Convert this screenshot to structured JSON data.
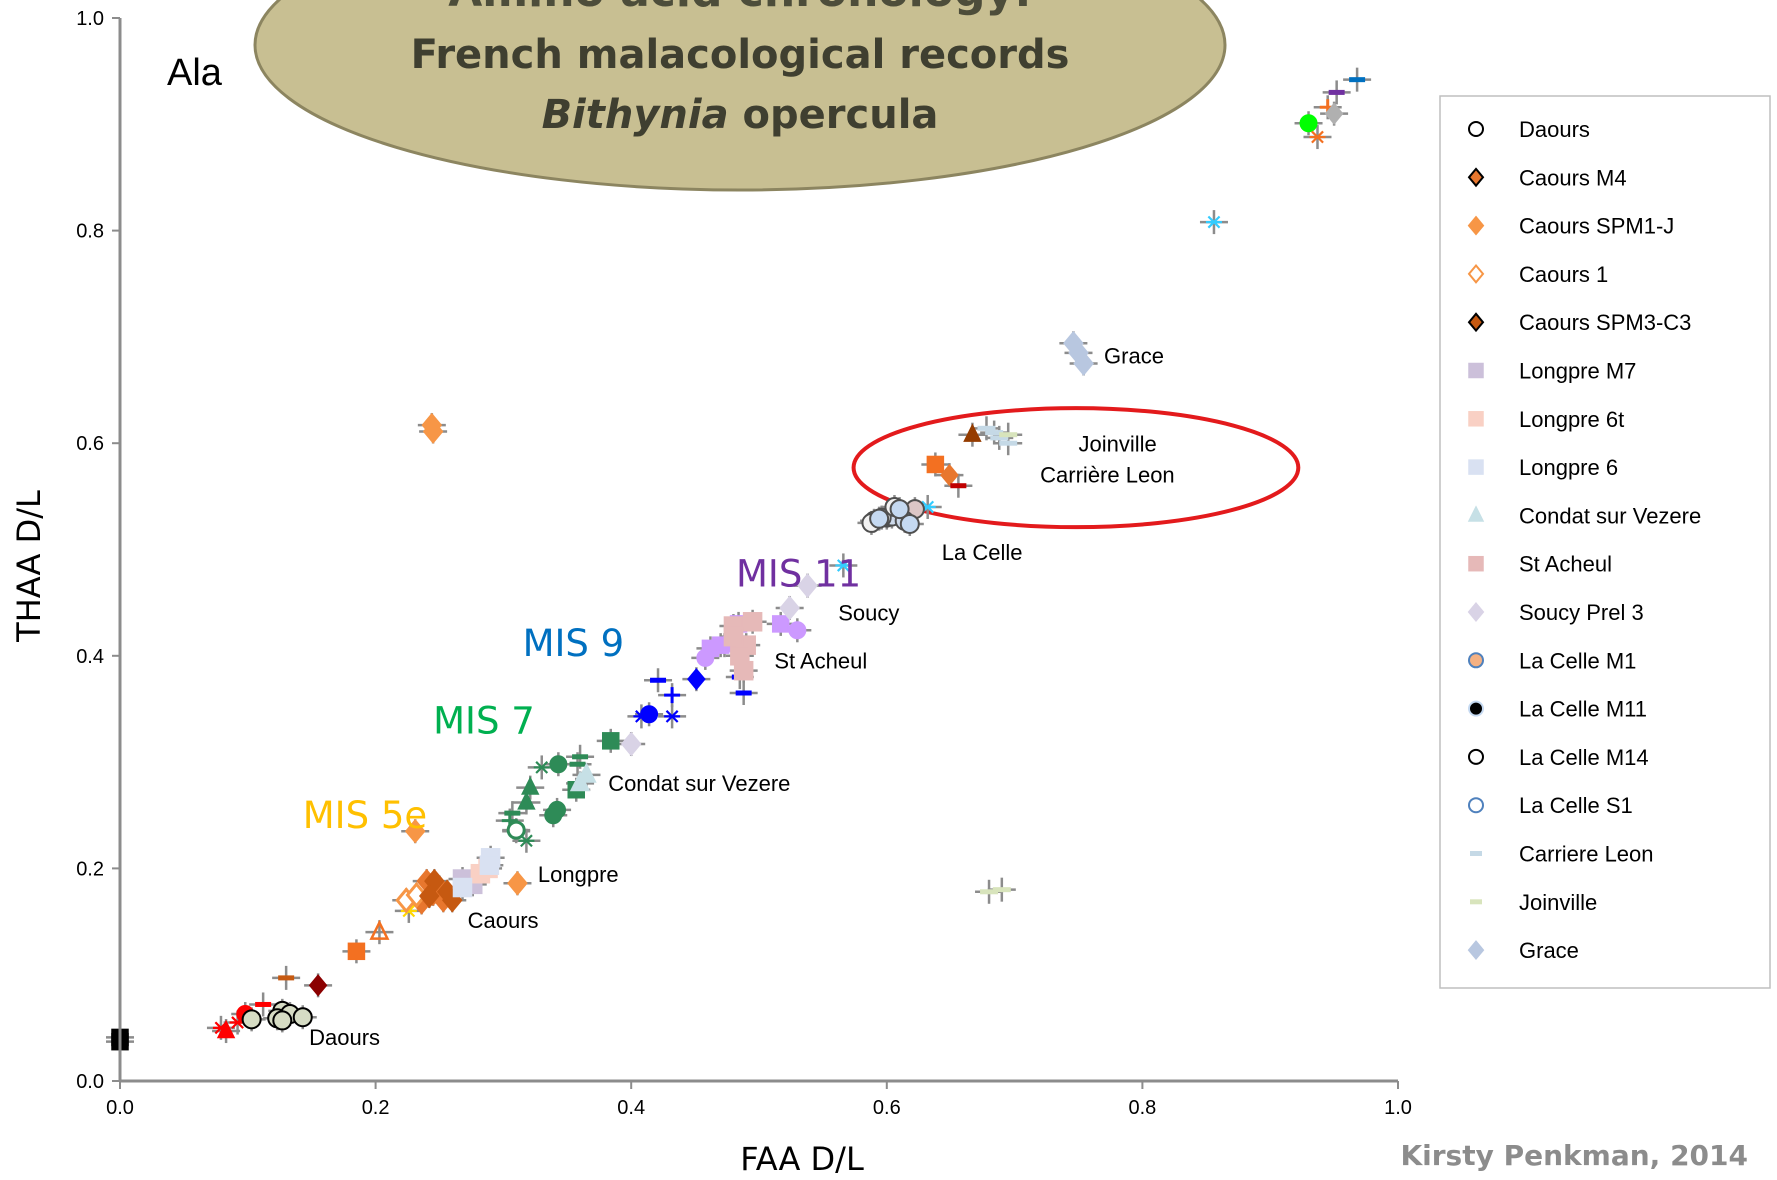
{
  "chart_data": {
    "type": "scatter",
    "title": "Amino acid chronology:",
    "subtitle_line1": "French malacological records",
    "subtitle_italic": "Bithynia",
    "subtitle_rest": " opercula",
    "corner_label": "Ala",
    "xlabel": "FAA D/L",
    "ylabel": "THAA D/L",
    "xlim": [
      0.0,
      1.0
    ],
    "ylim": [
      0.0,
      1.0
    ],
    "x_ticks": [
      "0.0",
      "0.2",
      "0.4",
      "0.6",
      "0.8",
      "1.0"
    ],
    "y_ticks": [
      "0.0",
      "0.2",
      "0.4",
      "0.6",
      "0.8",
      "1.0"
    ],
    "grid": false,
    "legend_position": "right",
    "credit": "Kirsty Penkman, 2014",
    "annotations": [
      {
        "text": "Grace",
        "x": 0.77,
        "y": 0.675
      },
      {
        "text": "Joinville",
        "x": 0.75,
        "y": 0.592
      },
      {
        "text": "Carrière Leon",
        "x": 0.72,
        "y": 0.563
      },
      {
        "text": "La Celle",
        "x": 0.643,
        "y": 0.49
      },
      {
        "text": "Soucy",
        "x": 0.562,
        "y": 0.433
      },
      {
        "text": "St Acheul",
        "x": 0.512,
        "y": 0.388
      },
      {
        "text": "Condat sur Vezere",
        "x": 0.382,
        "y": 0.273
      },
      {
        "text": "Longpre",
        "x": 0.327,
        "y": 0.187
      },
      {
        "text": "Caours",
        "x": 0.272,
        "y": 0.144
      },
      {
        "text": "Daours",
        "x": 0.148,
        "y": 0.034
      }
    ],
    "mis_labels": [
      {
        "text": "MIS 11",
        "x": 0.482,
        "y": 0.465,
        "color": "#7030a0"
      },
      {
        "text": "MIS 9",
        "x": 0.315,
        "y": 0.4,
        "color": "#0070c0"
      },
      {
        "text": "MIS 7",
        "x": 0.245,
        "y": 0.327,
        "color": "#00b050"
      },
      {
        "text": "MIS 5e",
        "x": 0.143,
        "y": 0.238,
        "color": "#ffc000"
      }
    ],
    "highlight_ellipse": {
      "cx": 0.748,
      "cy": 0.577,
      "rx": 0.174,
      "ry": 0.056,
      "color": "#e31a1c"
    },
    "series": [
      {
        "name": "Daours",
        "marker": "circle-open",
        "color": "#000000",
        "points": [
          [
            0.127,
            0.066
          ],
          [
            0.133,
            0.063
          ],
          [
            0.123,
            0.059
          ],
          [
            0.103,
            0.058
          ],
          [
            0.143,
            0.06
          ],
          [
            0.127,
            0.057
          ]
        ]
      },
      {
        "name": "Caours M4",
        "marker": "diamond",
        "color": "#e8772e",
        "points": [
          [
            0.24,
            0.188
          ],
          [
            0.25,
            0.182
          ],
          [
            0.245,
            0.176
          ],
          [
            0.253,
            0.17
          ],
          [
            0.236,
            0.168
          ]
        ]
      },
      {
        "name": "Caours SPM1-J",
        "marker": "diamond",
        "color": "#f79646",
        "points": [
          [
            0.244,
            0.617
          ],
          [
            0.245,
            0.611
          ],
          [
            0.311,
            0.186
          ],
          [
            0.231,
            0.235
          ]
        ]
      },
      {
        "name": "Caours 1",
        "marker": "diamond-open",
        "color": "#f79646",
        "points": [
          [
            0.224,
            0.17
          ],
          [
            0.232,
            0.175
          ]
        ]
      },
      {
        "name": "Caours SPM3-C3",
        "marker": "diamond",
        "color": "#c65911",
        "points": [
          [
            0.246,
            0.188
          ],
          [
            0.256,
            0.178
          ],
          [
            0.26,
            0.17
          ],
          [
            0.242,
            0.174
          ]
        ]
      },
      {
        "name": "Longpre M7",
        "marker": "square",
        "color": "#ccc0da",
        "points": [
          [
            0.268,
            0.19
          ],
          [
            0.276,
            0.185
          ]
        ]
      },
      {
        "name": "Longpre 6t",
        "marker": "square",
        "color": "#f9d0c4",
        "points": [
          [
            0.282,
            0.195
          ],
          [
            0.288,
            0.2
          ]
        ]
      },
      {
        "name": "Longpre 6",
        "marker": "square",
        "color": "#d9e1f2",
        "points": [
          [
            0.29,
            0.21
          ],
          [
            0.268,
            0.182
          ],
          [
            0.289,
            0.203
          ]
        ]
      },
      {
        "name": "Condat sur Vezere",
        "marker": "triangle",
        "color": "#c6e0e6",
        "points": [
          [
            0.365,
            0.288
          ],
          [
            0.36,
            0.28
          ]
        ]
      },
      {
        "name": "St Acheul",
        "marker": "square",
        "color": "#e6b9b8",
        "points": [
          [
            0.48,
            0.428
          ],
          [
            0.49,
            0.41
          ],
          [
            0.485,
            0.4
          ],
          [
            0.488,
            0.386
          ],
          [
            0.495,
            0.432
          ],
          [
            0.48,
            0.418
          ]
        ]
      },
      {
        "name": "Soucy Prel 3",
        "marker": "diamond",
        "color": "#d9d3e6",
        "points": [
          [
            0.538,
            0.466
          ],
          [
            0.524,
            0.445
          ],
          [
            0.4,
            0.317
          ]
        ]
      },
      {
        "name": "La Celle M1",
        "marker": "circle",
        "color": "#dcc6c6",
        "points": [
          [
            0.6,
            0.53
          ],
          [
            0.612,
            0.534
          ],
          [
            0.622,
            0.538
          ]
        ]
      },
      {
        "name": "La Celle M11",
        "marker": "circle",
        "color": "#cdd9ea",
        "points": [
          [
            0.59,
            0.527
          ],
          [
            0.604,
            0.531
          ],
          [
            0.614,
            0.527
          ]
        ]
      },
      {
        "name": "La Celle M14",
        "marker": "circle",
        "color": "#f2f2f2",
        "points": [
          [
            0.588,
            0.525
          ],
          [
            0.596,
            0.53
          ],
          [
            0.606,
            0.54
          ]
        ]
      },
      {
        "name": "La Celle S1",
        "marker": "circle",
        "color": "#c5d9f1",
        "points": [
          [
            0.594,
            0.529
          ],
          [
            0.61,
            0.538
          ],
          [
            0.618,
            0.524
          ]
        ]
      },
      {
        "name": "Carriere Leon",
        "marker": "dash",
        "color": "#c5d9e6",
        "points": [
          [
            0.678,
            0.614
          ],
          [
            0.688,
            0.605
          ],
          [
            0.695,
            0.6
          ],
          [
            0.684,
            0.61
          ]
        ]
      },
      {
        "name": "Joinville",
        "marker": "dash",
        "color": "#d8e4bc",
        "points": [
          [
            0.695,
            0.608
          ],
          [
            0.68,
            0.178
          ],
          [
            0.69,
            0.18
          ]
        ]
      },
      {
        "name": "Grace",
        "marker": "diamond",
        "color": "#b8c7e0",
        "points": [
          [
            0.746,
            0.694
          ],
          [
            0.75,
            0.685
          ],
          [
            0.754,
            0.675
          ]
        ]
      }
    ],
    "legend": [
      {
        "label": "Daours",
        "marker": "circle-open",
        "fill": "#ffffff",
        "stroke": "#000000"
      },
      {
        "label": "Caours M4",
        "marker": "diamond",
        "fill": "#e8772e",
        "stroke": "#000000"
      },
      {
        "label": "Caours SPM1-J",
        "marker": "diamond",
        "fill": "#f79646",
        "stroke": "#f79646"
      },
      {
        "label": "Caours 1",
        "marker": "diamond",
        "fill": "#ffffff",
        "stroke": "#f79646"
      },
      {
        "label": "Caours SPM3-C3",
        "marker": "diamond",
        "fill": "#c65911",
        "stroke": "#000000"
      },
      {
        "label": "Longpre M7",
        "marker": "square",
        "fill": "#ccc0da",
        "stroke": "#ccc0da"
      },
      {
        "label": "Longpre 6t",
        "marker": "square",
        "fill": "#f9d0c4",
        "stroke": "#f9d0c4"
      },
      {
        "label": "Longpre 6",
        "marker": "square",
        "fill": "#d9e1f2",
        "stroke": "#d9e1f2"
      },
      {
        "label": "Condat sur Vezere",
        "marker": "triangle",
        "fill": "#c6e0e6",
        "stroke": "#c6e0e6"
      },
      {
        "label": "St Acheul",
        "marker": "square",
        "fill": "#e6b9b8",
        "stroke": "#e6b9b8"
      },
      {
        "label": "Soucy Prel 3",
        "marker": "diamond",
        "fill": "#d9d3e6",
        "stroke": "#d9d3e6"
      },
      {
        "label": "La Celle M1",
        "marker": "circle",
        "fill": "#f4b183",
        "stroke": "#4f81bd"
      },
      {
        "label": "La Celle M11",
        "marker": "circle",
        "fill": "#000000",
        "stroke": "#c5d9f1"
      },
      {
        "label": "La Celle M14",
        "marker": "circle",
        "fill": "#ffffff",
        "stroke": "#000000"
      },
      {
        "label": "La Celle S1",
        "marker": "circle",
        "fill": "#ffffff",
        "stroke": "#4f81bd"
      },
      {
        "label": "Carriere Leon",
        "marker": "dash",
        "fill": "#c5d9e6",
        "stroke": "#c5d9e6"
      },
      {
        "label": "Joinville",
        "marker": "dash",
        "fill": "#d8e4bc",
        "stroke": "#d8e4bc"
      },
      {
        "label": "Grace",
        "marker": "diamond",
        "fill": "#b8c7e0",
        "stroke": "#b8c7e0"
      }
    ],
    "other_points": [
      {
        "marker": "circle",
        "color": "#00ff00",
        "x": 0.93,
        "y": 0.901
      },
      {
        "marker": "star",
        "color": "#f37021",
        "x": 0.937,
        "y": 0.888
      },
      {
        "marker": "plus",
        "color": "#f37021",
        "x": 0.945,
        "y": 0.916
      },
      {
        "marker": "diamond",
        "color": "#b0b0b0",
        "x": 0.95,
        "y": 0.91
      },
      {
        "marker": "dash",
        "color": "#7030a0",
        "x": 0.952,
        "y": 0.93
      },
      {
        "marker": "dash",
        "color": "#0070c0",
        "x": 0.968,
        "y": 0.942
      },
      {
        "marker": "star",
        "color": "#33ccff",
        "x": 0.856,
        "y": 0.808
      },
      {
        "marker": "star",
        "color": "#33ccff",
        "x": 0.566,
        "y": 0.485
      },
      {
        "marker": "star",
        "color": "#33ccff",
        "x": 0.632,
        "y": 0.54
      },
      {
        "marker": "triangle",
        "color": "#953c00",
        "x": 0.667,
        "y": 0.608
      },
      {
        "marker": "square",
        "color": "#f37021",
        "x": 0.638,
        "y": 0.58
      },
      {
        "marker": "diamond",
        "color": "#e8772e",
        "x": 0.649,
        "y": 0.57
      },
      {
        "marker": "dash",
        "color": "#c00000",
        "x": 0.656,
        "y": 0.56
      },
      {
        "marker": "square",
        "color": "#cc99ff",
        "x": 0.47,
        "y": 0.41
      },
      {
        "marker": "square",
        "color": "#cc99ff",
        "x": 0.462,
        "y": 0.407
      },
      {
        "marker": "square",
        "color": "#cc99ff",
        "x": 0.517,
        "y": 0.43
      },
      {
        "marker": "circle",
        "color": "#cc99ff",
        "x": 0.53,
        "y": 0.424
      },
      {
        "marker": "circle",
        "color": "#cc99ff",
        "x": 0.458,
        "y": 0.398
      },
      {
        "marker": "triangle",
        "color": "#cc99ff",
        "x": 0.473,
        "y": 0.41
      },
      {
        "marker": "square",
        "color": "#cc99ff",
        "x": 0.484,
        "y": 0.43
      },
      {
        "marker": "circle",
        "color": "#0000ff",
        "x": 0.414,
        "y": 0.345
      },
      {
        "marker": "star",
        "color": "#0000ff",
        "x": 0.408,
        "y": 0.343
      },
      {
        "marker": "star",
        "color": "#0000ff",
        "x": 0.432,
        "y": 0.343
      },
      {
        "marker": "diamond",
        "color": "#0000ff",
        "x": 0.451,
        "y": 0.378
      },
      {
        "marker": "plus",
        "color": "#0000ff",
        "x": 0.432,
        "y": 0.363
      },
      {
        "marker": "dash",
        "color": "#0000ff",
        "x": 0.421,
        "y": 0.377
      },
      {
        "marker": "dash",
        "color": "#0000ff",
        "x": 0.485,
        "y": 0.38
      },
      {
        "marker": "dash",
        "color": "#0000ff",
        "x": 0.488,
        "y": 0.365
      },
      {
        "marker": "square",
        "color": "#2e8b57",
        "x": 0.384,
        "y": 0.32
      },
      {
        "marker": "square",
        "color": "#2e8b57",
        "x": 0.357,
        "y": 0.274
      },
      {
        "marker": "circle",
        "color": "#2e8b57",
        "x": 0.343,
        "y": 0.298
      },
      {
        "marker": "circle",
        "color": "#2e8b57",
        "x": 0.342,
        "y": 0.255
      },
      {
        "marker": "circle",
        "color": "#2e8b57",
        "x": 0.339,
        "y": 0.25
      },
      {
        "marker": "triangle",
        "color": "#2e8b57",
        "x": 0.321,
        "y": 0.276
      },
      {
        "marker": "triangle",
        "color": "#2e8b57",
        "x": 0.318,
        "y": 0.262
      },
      {
        "marker": "star",
        "color": "#2e8b57",
        "x": 0.33,
        "y": 0.295
      },
      {
        "marker": "star",
        "color": "#2e8b57",
        "x": 0.31,
        "y": 0.235
      },
      {
        "marker": "star",
        "color": "#2e8b57",
        "x": 0.318,
        "y": 0.226
      },
      {
        "marker": "dash",
        "color": "#2e8b57",
        "x": 0.36,
        "y": 0.305
      },
      {
        "marker": "dash",
        "color": "#2e8b57",
        "x": 0.358,
        "y": 0.298
      },
      {
        "marker": "dash",
        "color": "#2e8b57",
        "x": 0.307,
        "y": 0.252
      },
      {
        "marker": "plus",
        "color": "#2e8b57",
        "x": 0.305,
        "y": 0.245
      },
      {
        "marker": "circle-open",
        "color": "#2e8b57",
        "x": 0.31,
        "y": 0.236
      },
      {
        "marker": "star",
        "color": "#ffd700",
        "x": 0.226,
        "y": 0.16
      },
      {
        "marker": "triangle-open",
        "color": "#f37021",
        "x": 0.203,
        "y": 0.14
      },
      {
        "marker": "square",
        "color": "#f37021",
        "x": 0.185,
        "y": 0.122
      },
      {
        "marker": "dash",
        "color": "#c65911",
        "x": 0.13,
        "y": 0.097
      },
      {
        "marker": "diamond",
        "color": "#8b0000",
        "x": 0.155,
        "y": 0.09
      },
      {
        "marker": "circle",
        "color": "#ff0000",
        "x": 0.098,
        "y": 0.063
      },
      {
        "marker": "triangle",
        "color": "#ff0000",
        "x": 0.083,
        "y": 0.047
      },
      {
        "marker": "star",
        "color": "#ff0000",
        "x": 0.079,
        "y": 0.05
      },
      {
        "marker": "star",
        "color": "#ff0000",
        "x": 0.092,
        "y": 0.055
      },
      {
        "marker": "dash",
        "color": "#ff0000",
        "x": 0.112,
        "y": 0.072
      },
      {
        "marker": "square",
        "color": "#000000",
        "x": 0.0,
        "y": 0.041
      },
      {
        "marker": "square",
        "color": "#000000",
        "x": 0.0,
        "y": 0.037
      }
    ]
  }
}
